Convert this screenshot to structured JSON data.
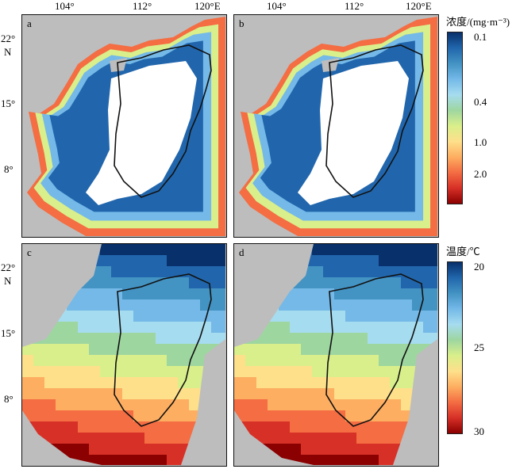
{
  "axes": {
    "lon_ticks": [
      "104°",
      "112°",
      "120°E"
    ],
    "lat_ticks": [
      "22°",
      "15°",
      "8°"
    ],
    "lat_unit": "N"
  },
  "panels": [
    {
      "id": "a",
      "variable": "chlorophyll"
    },
    {
      "id": "b",
      "variable": "chlorophyll"
    },
    {
      "id": "c",
      "variable": "temperature"
    },
    {
      "id": "d",
      "variable": "temperature"
    }
  ],
  "colorbars": {
    "concentration": {
      "title": "浓度/(mg·m⁻³)",
      "ticks": [
        "0.1",
        "0.4",
        "1.0",
        "2.0"
      ],
      "colors": [
        "#08306b",
        "#2166ac",
        "#4393c3",
        "#74b9e8",
        "#a6dcef",
        "#9ed6a0",
        "#d9ef8b",
        "#fee08b",
        "#fdae61",
        "#f46d43",
        "#d73027",
        "#8b0000"
      ],
      "scale": "log"
    },
    "temperature": {
      "title": "温度/℃",
      "ticks": [
        "20",
        "25",
        "30"
      ],
      "range": [
        20,
        30
      ],
      "colors": [
        "#08306b",
        "#2166ac",
        "#4393c3",
        "#74b9e8",
        "#a6dcef",
        "#9ed6a0",
        "#d9ef8b",
        "#fee08b",
        "#fdae61",
        "#f46d43",
        "#d73027",
        "#8b0000"
      ]
    }
  },
  "colors": {
    "land": "#bdbdbd",
    "nodata": "#ffffff",
    "boundary": "#111111"
  }
}
